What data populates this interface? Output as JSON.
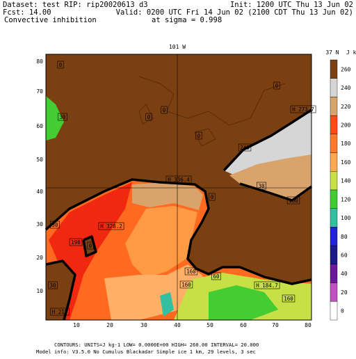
{
  "header": {
    "dataset": "Dataset: test  RIP: rip20020613 d3",
    "init": "Init: 1200 UTC Thu 13 Jun 02",
    "fcst": "Fcst:    14.00",
    "valid": "Valid: 0200 UTC Fri 14 Jun 02 (2100 CDT Thu 13 Jun 02)",
    "field": "Convective inhibition",
    "level": "at sigma = 0.998"
  },
  "map": {
    "top_label": "101 W",
    "corner_label": "37 N",
    "y_labels": [
      "80",
      "70",
      "60",
      "50",
      "40",
      "30",
      "20",
      "10"
    ],
    "x_labels": [
      "10",
      "20",
      "30",
      "40",
      "50",
      "60",
      "70",
      "80"
    ],
    "contour_labels": [
      "0",
      "0",
      "0",
      "0",
      "0",
      "30",
      "240",
      "30",
      "160",
      "0",
      "30",
      "190",
      "0",
      "160",
      "160",
      "60",
      "30",
      "160",
      "H 273.7",
      "H 336.4",
      "H 328.2",
      "H 184.7",
      "H 217"
    ]
  },
  "colorbar": {
    "units": "J kg-1",
    "labels": [
      "260",
      "240",
      "220",
      "200",
      "180",
      "160",
      "140",
      "120",
      "100",
      "80",
      "60",
      "40",
      "20",
      "0"
    ]
  },
  "footer": {
    "contours": "CONTOURS:  UNITS=J kg-1  LOW= 0.0000E+00  HIGH=  260.00    INTERVAL=  20.000",
    "model": "Model info: V3.5.0 No Cumulus Blackadar  Simple ice   1 km,  29 levels,   3 sec"
  }
}
